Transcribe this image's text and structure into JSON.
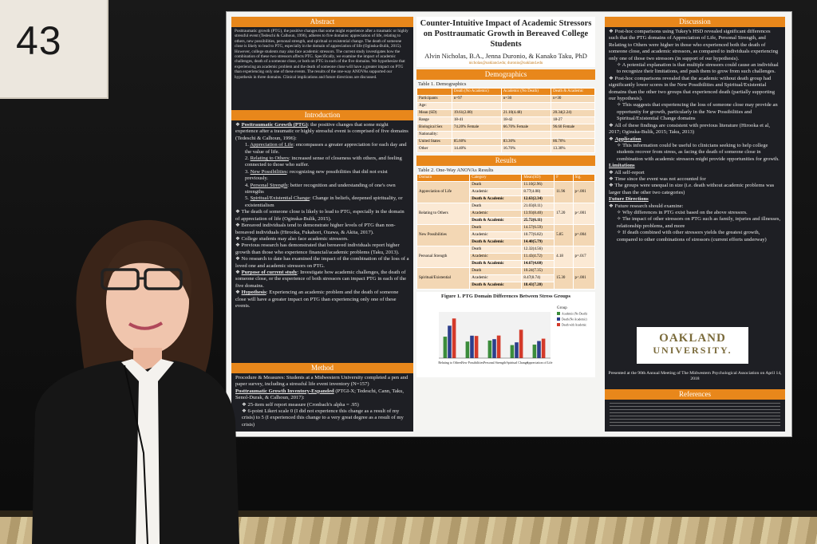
{
  "number_card": "43",
  "poster": {
    "title": "Counter-Intuitive Impact of Academic Stressors on Posttraumatic Growth in Bereaved College Students",
    "authors": "Alvin Nicholas, B.A., Jenna Duronio, & Kanako Taku, PhD",
    "emails": "nicholas@oakland.edu; duronio@oakland.edu",
    "abstract_heading": "Abstract",
    "abstract_text": "Posttraumatic growth (PTG), the positive changes that some might experience after a traumatic or highly stressful event (Tedeschi & Calhoun, 1996), adheres to five domains: appreciation of life, relating to others, new possibilities, personal strength, and spiritual or existential change. The death of someone close is likely to lead to PTG, especially in the domain of appreciation of life (Oginska-Bulik, 2015). However, college students may also face academic stressors. The current study investigates how the combination of these two stressors affects PTG. Specifically, we examine the impact of academic challenges, death of a someone close, or both on PTG in each of the five domains. We hypothesize that experiencing an academic problem and the death of someone close will have a greater impact on PTG than experiencing only one of these events. The results of the one-way ANOVAs supported our hypothesis in three domains. Clinical implications and future directions are discussed.",
    "intro_heading": "Introduction",
    "intro_ptg_label": "Posttraumatic Growth (PTG)",
    "intro_ptg_text": ": the positive changes that some might experience after a traumatic or highly stressful event is comprised of five domains (Tedeschi & Calhoun, 1996):",
    "domains": [
      {
        "label": "Appreciation of Life",
        "text": ": encompasses a greater appreciation for each day and the value of life."
      },
      {
        "label": "Relating to Others",
        "text": ": increased sense of closeness with others, and feeling connected to those who suffer."
      },
      {
        "label": "New Possibilities",
        "text": ": recognizing new possibilities that did not exist previously."
      },
      {
        "label": "Personal Strength",
        "text": ": better recognition and understanding of one's own strengths"
      },
      {
        "label": "Spiritual/Existential Change",
        "text": ": Change in beliefs, deepened spirituality, or existentialism"
      }
    ],
    "intro_bullets": [
      "The death of someone close is likely to lead to PTG, especially in the domain of appreciation of life (Oginska-Bulik, 2015).",
      "Bereaved individuals tend to demonstrate higher levels of PTG than non-bereaved individuals (Hirooka, Fukahori, Ozawa, & Akita, 2017).",
      "College students may also face academic stressors.",
      "Previous research has demonstrated that bereaved individuals report higher growth than those who experience financial/academic problems (Taku, 2013).",
      "No research to date has examined the impact of the combination of the loss of a loved one and academic stressors on PTG."
    ],
    "purpose_label": "Purpose of current study",
    "purpose_text": ": Investigate how academic challenges, the death of someone close, or the experience of both stressors can impact PTG in each of the five domains.",
    "hypothesis_label": "Hypothesis",
    "hypothesis_text": ": Experiencing an academic problem and the death of someone close will have a greater impact on PTG than experiencing only one of these events.",
    "method_heading": "Method",
    "method_text": "Procedure & Measures: Students at a Midwestern University completed a pen and paper survey, including a stressful life event inventory (N=157)",
    "method_inventory_label": "Posttraumatic Growth Inventory-Expanded",
    "method_inventory_text": " (PTGI-X; Tedeschi, Cann, Taku, Senol-Durak, & Calhoun, 2017):",
    "method_items": [
      "25-item self report measure (Cronbach's alpha = .95)",
      "6-point Likert scale 0 (I did not experience this change as a result of my crisis) to 5 (I experienced this change to a very great degree as a result of my crisis)"
    ],
    "demographics_heading": "Demographics",
    "table1_title": "Table 1. Demographics",
    "table1_headers": [
      "",
      "Death (No Academic)",
      "Academic (No Death)",
      "Death & Academic"
    ],
    "table1_rows": [
      [
        "Participants",
        "n=97",
        "n=30",
        "n=30"
      ],
      [
        "Age:",
        "",
        "",
        ""
      ],
      [
        "Mean (SD)",
        "19.61(2.80)",
        "21.10(4.48)",
        "20.34(2.24)"
      ],
      [
        "Range",
        "18-41",
        "18-42",
        "18-27"
      ],
      [
        "Biological Sex",
        "74.20% Female",
        "66.70% Female",
        "96.60 Female"
      ],
      [
        "Nationality:",
        "",
        "",
        ""
      ],
      [
        "United States",
        "85.60%",
        "83.30%",
        "86.70%"
      ],
      [
        "Other",
        "14.40%",
        "16.70%",
        "13.30%"
      ]
    ],
    "results_heading": "Results",
    "table2_title": "Table 2. One-Way ANOVAs Results",
    "table2_headers": [
      "Domain",
      "Category",
      "Mean(SD)",
      "F",
      "Sig."
    ],
    "table2_groups": [
      {
        "domain": "Appreciation of Life",
        "f": "11.96",
        "sig": "p<.001",
        "rows": [
          [
            "Death",
            "11.10(2.96)"
          ],
          [
            "Academic",
            "8.77(4.08)"
          ],
          [
            "Death & Academic",
            "12.63(2.34)"
          ]
        ]
      },
      {
        "domain": "Relating to Others",
        "f": "17.20",
        "sig": "p<.001",
        "rows": [
          [
            "Death",
            "21.03(8.11)"
          ],
          [
            "Academic",
            "13.93(8.40)"
          ],
          [
            "Death & Academic",
            "25.72(6.11)"
          ]
        ]
      },
      {
        "domain": "New Possibilities",
        "f": "5.85",
        "sig": "p=.004",
        "rows": [
          [
            "Death",
            "14.57(6.59)"
          ],
          [
            "Academic",
            "10.77(6.82)"
          ],
          [
            "Death & Academic",
            "14.40(5.79)"
          ]
        ]
      },
      {
        "domain": "Personal Strength",
        "f": "4.18",
        "sig": "p=.017",
        "rows": [
          [
            "Death",
            "12.32(4.56)"
          ],
          [
            "Academic",
            "11.43(4.72)"
          ],
          [
            "Death & Academic",
            "14.67(4.60)"
          ]
        ]
      },
      {
        "domain": "Spiritual/Existential",
        "f": "15.30",
        "sig": "p<.001",
        "rows": [
          [
            "Death",
            "10.24(7.35)"
          ],
          [
            "Academic",
            "8.47(8.74)"
          ],
          [
            "Death & Academic",
            "18.43(7.20)"
          ]
        ]
      }
    ],
    "figure_title": "Figure 1. PTG Domain Differences Between Stress Groups",
    "figure_legend_title": "Group",
    "figure_legend": [
      "Academic (No Death)",
      "Death (No Academic)",
      "Death with Academic"
    ],
    "figure_colors": [
      "#3b8c3b",
      "#2c3e8c",
      "#d43a2a"
    ],
    "figure_categories": [
      "Relating to Others",
      "New Possibilities",
      "Personal Strength",
      "Spiritual Change",
      "Appreciation of Life"
    ],
    "figure_values": [
      [
        13.93,
        21.03,
        25.72
      ],
      [
        10.77,
        14.57,
        14.4
      ],
      [
        11.43,
        12.32,
        14.67
      ],
      [
        8.47,
        10.24,
        18.43
      ],
      [
        8.77,
        11.1,
        12.63
      ]
    ],
    "discussion_heading": "Discussion",
    "discussion_items": [
      "Post-hoc comparisons using Tukey's HSD revealed significant differences such that the PTG domains of Appreciation of Life, Personal Strength, and Relating to Others were higher in those who experienced both the death of someone close, and academic stressors, as compared to individuals experiencing only one of those two stressors (in support of our hypothesis).",
      "A potential explanation is that multiple stressors could cause an individual to recognize their limitations, and push them to grow from such challenges.",
      "Post-hoc comparisons revealed that the academic without death group had significantly lower scores in the New Possibilities and Spiritual/Existential domains than the other two groups that experienced death (partially supporting our hypothesis).",
      "This suggests that experiencing the loss of someone close may provide an opportunity for growth, particularly in the New Possibilities and Spiritual/Existential Change domains",
      "All of these findings are consistent with previous literature (Hirooka et al, 2017; Oginska-Bulik, 2015; Taku, 2013)"
    ],
    "application_label": "Application",
    "application_text": "This information could be useful to clinicians seeking to help college students recover from stress, as facing the death of someone close in combination with academic stressors might provide opportunities for growth.",
    "limitations_label": "Limitations",
    "limitations_items": [
      "All self-report",
      "Time since the event was not accounted for",
      "The groups were unequal in size (i.e. death without academic problems was larger than the other two categories)"
    ],
    "future_label": "Future Directions",
    "future_intro": "Future research should examine:",
    "future_items": [
      "Why differences in PTG exist based on the above stressors.",
      "The impact of other stressors on PTG such as family, injuries and illnesses, relationship problems, and more",
      "If death combined with other stressors yields the greatest growth, compared to other combinations of stressors (current efforts underway)"
    ],
    "logo_line1": "OAKLAND",
    "logo_line2": "UNIVERSITY.",
    "presented_text": "Presented at the 90th Annual Meeting of The Midwestern Psychological Association on April 14, 2018",
    "references_heading": "References"
  }
}
